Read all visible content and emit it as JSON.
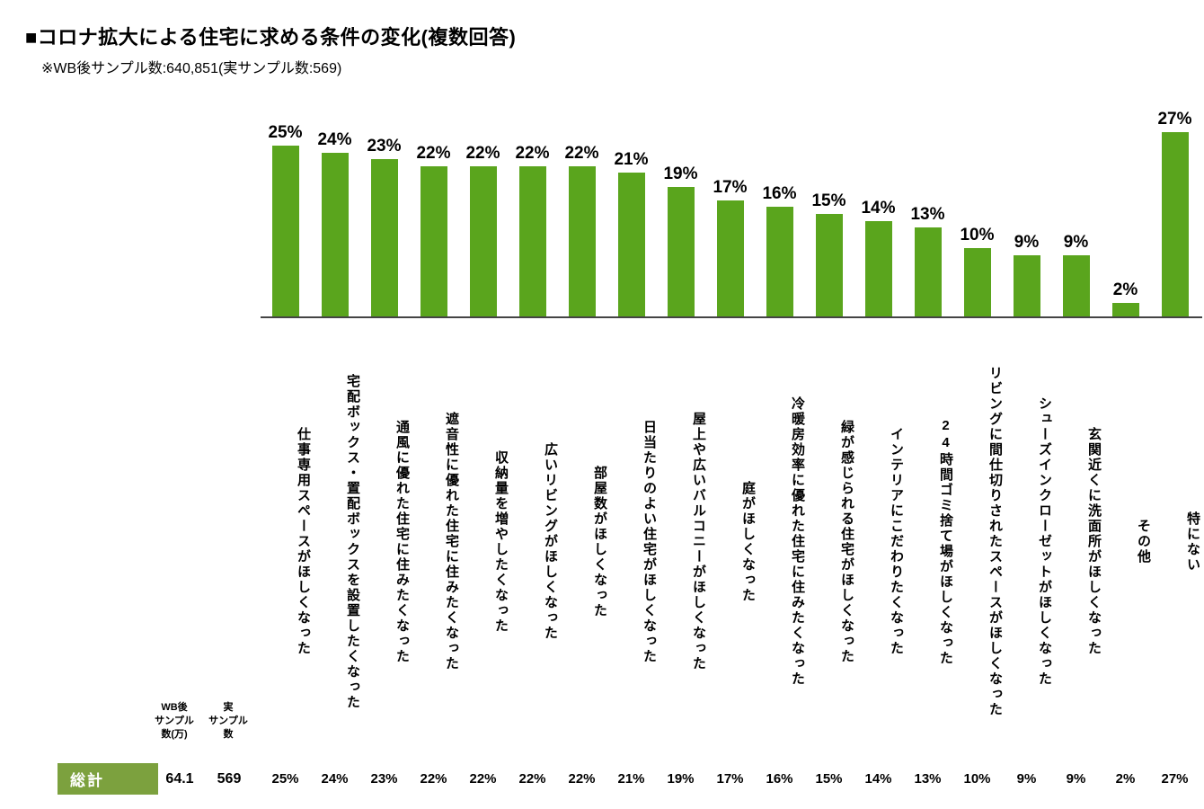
{
  "page": {
    "title": "■コロナ拡大による住宅に求める条件の変化(複数回答)",
    "subtitle": "※WB後サンプル数:640,851(実サンプル数:569)"
  },
  "chart_data": {
    "type": "bar",
    "title": "コロナ拡大による住宅に求める条件の変化(複数回答)",
    "categories": [
      "仕事専用スペースがほしくなった",
      "宅配ボックス・置配ボックスを設置したくなった",
      "通風に優れた住宅に住みたくなった",
      "遮音性に優れた住宅に住みたくなった",
      "収納量を増やしたくなった",
      "広いリビングがほしくなった",
      "部屋数がほしくなった",
      "日当たりのよい住宅がほしくなった",
      "屋上や広いバルコニーがほしくなった",
      "庭がほしくなった",
      "冷暖房効率に優れた住宅に住みたくなった",
      "緑が感じられる住宅がほしくなった",
      "インテリアにこだわりたくなった",
      "24時間ゴミ捨て場がほしくなった",
      "リビングに間仕切りされたスペースがほしくなった",
      "シューズインクローゼットがほしくなった",
      "玄関近くに洗面所がほしくなった",
      "その他",
      "特にない"
    ],
    "values": [
      25,
      24,
      23,
      22,
      22,
      22,
      22,
      21,
      19,
      17,
      16,
      15,
      14,
      13,
      10,
      9,
      9,
      2,
      27
    ],
    "value_suffix": "%",
    "bar_color": "#5aa51d",
    "ylim": [
      0,
      28
    ],
    "xlabel": "",
    "ylabel": "",
    "grid": false,
    "legend": "none"
  },
  "summary": {
    "row_label": "総計",
    "col1_header_lines": [
      "WB後",
      "サンプル",
      "数(万)"
    ],
    "col2_header_lines": [
      "実",
      "サンプル",
      "数"
    ],
    "col1_value": "64.1",
    "col2_value": "569",
    "values": [
      "25%",
      "24%",
      "23%",
      "22%",
      "22%",
      "22%",
      "22%",
      "21%",
      "19%",
      "17%",
      "16%",
      "15%",
      "14%",
      "13%",
      "10%",
      "9%",
      "9%",
      "2%",
      "27%"
    ]
  }
}
